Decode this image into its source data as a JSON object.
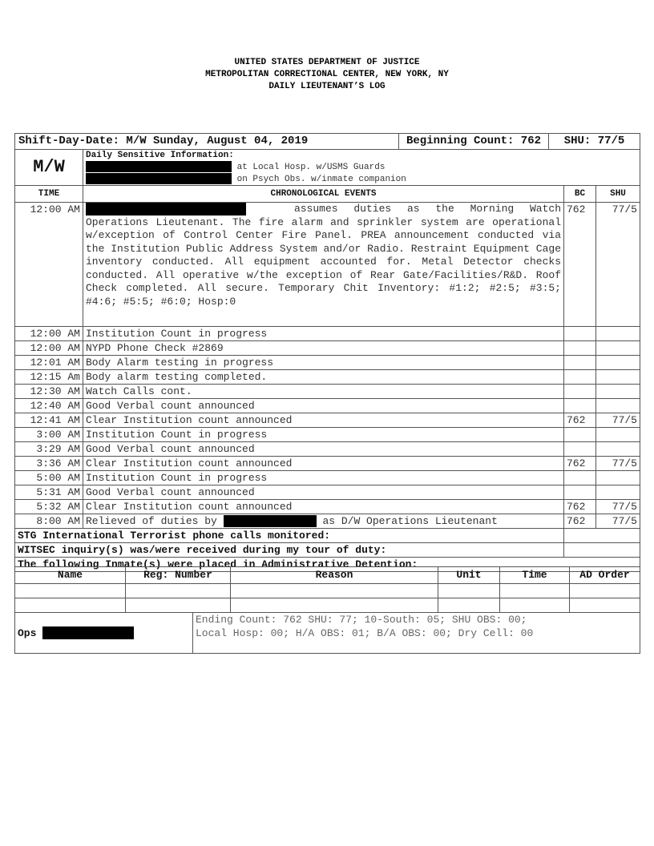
{
  "header": {
    "line1": "UNITED STATES DEPARTMENT OF JUSTICE",
    "line2": "METROPOLITAN CORRECTIONAL CENTER, NEW YORK, NY",
    "line3": "DAILY LIEUTENANT’S LOG"
  },
  "top": {
    "shift": "Shift-Day-Date: M/W Sunday, August 04, 2019",
    "beginning": "Beginning Count: 762",
    "shu": "SHU: 77/5"
  },
  "sensitive": {
    "shift_code": "M/W",
    "label": "Daily Sensitive Information:",
    "line1": "at Local Hosp. w/USMS Guards",
    "line2": "on Psych Obs. w/inmate companion"
  },
  "columns": {
    "time": "TIME",
    "events": "CHRONOLOGICAL EVENTS",
    "bc": "BC",
    "shu": "SHU"
  },
  "first_event": {
    "time": "12:00 AM",
    "lead": "assumes duties as the Morning Watch",
    "text": "Operations Lieutenant. The fire alarm and sprinkler system are operational w/exception of Control Center Fire Panel.  PREA announcement conducted via the Institution Public Address System and/or Radio. Restraint Equipment Cage inventory conducted. All equipment accounted for. Metal Detector checks conducted. All operative w/the exception of Rear Gate/Facilities/R&D.  Roof Check completed. All secure. Temporary Chit Inventory: #1:2; #2:5; #3:5; #4:6; #5:5; #6:0; Hosp:0",
    "bc": "762",
    "shu": "77/5"
  },
  "events": [
    {
      "time": "12:00 AM",
      "text": "Institution Count in progress",
      "bc": "",
      "shu": ""
    },
    {
      "time": "12:00 AM",
      "text": "NYPD Phone Check #2869",
      "bc": "",
      "shu": ""
    },
    {
      "time": "12:01 AM",
      "text": "Body Alarm testing in progress",
      "bc": "",
      "shu": ""
    },
    {
      "time": "12:15 Am",
      "text": "Body alarm testing completed.",
      "bc": "",
      "shu": ""
    },
    {
      "time": "12:30 AM",
      "text": "Watch Calls cont.",
      "bc": "",
      "shu": ""
    },
    {
      "time": "12:40 AM",
      "text": "Good Verbal count announced",
      "bc": "",
      "shu": ""
    },
    {
      "time": "12:41 AM",
      "text": "Clear Institution count announced",
      "bc": "762",
      "shu": "77/5"
    },
    {
      "time": "3:00 AM",
      "text": "Institution Count in progress",
      "bc": "",
      "shu": ""
    },
    {
      "time": "3:29 AM",
      "text": "Good Verbal count announced",
      "bc": "",
      "shu": ""
    },
    {
      "time": "3:36 AM",
      "text": "Clear Institution count announced",
      "bc": "762",
      "shu": "77/5"
    },
    {
      "time": "5:00 AM",
      "text": "Institution Count in progress",
      "bc": "",
      "shu": ""
    },
    {
      "time": "5:31 AM",
      "text": "Good Verbal count announced",
      "bc": "",
      "shu": ""
    },
    {
      "time": "5:32 AM",
      "text": "Clear Institution count announced",
      "bc": "762",
      "shu": "77/5"
    }
  ],
  "last_event": {
    "time": "8:00 AM",
    "pre": "Relieved of duties by",
    "post": "as D/W Operations Lieutenant",
    "bc": "762",
    "shu": "77/5"
  },
  "stg": "STG International Terrorist phone calls monitored:",
  "witsec": "WITSEC inquiry(s) was/were received during my tour of duty:",
  "ad_title": "The following Inmate(s) were placed in Administrative Detention:",
  "ad_columns": [
    "Name",
    "Reg: Number",
    "Reason",
    "Unit",
    "Time",
    "AD Order"
  ],
  "footer": {
    "ops": "Ops",
    "line1": "Ending Count: 762 SHU: 77; 10-South: 05; SHU OBS: 00;",
    "line2": "Local Hosp: 00; H/A OBS: 01; B/A OBS: 00; Dry Cell: 00"
  }
}
